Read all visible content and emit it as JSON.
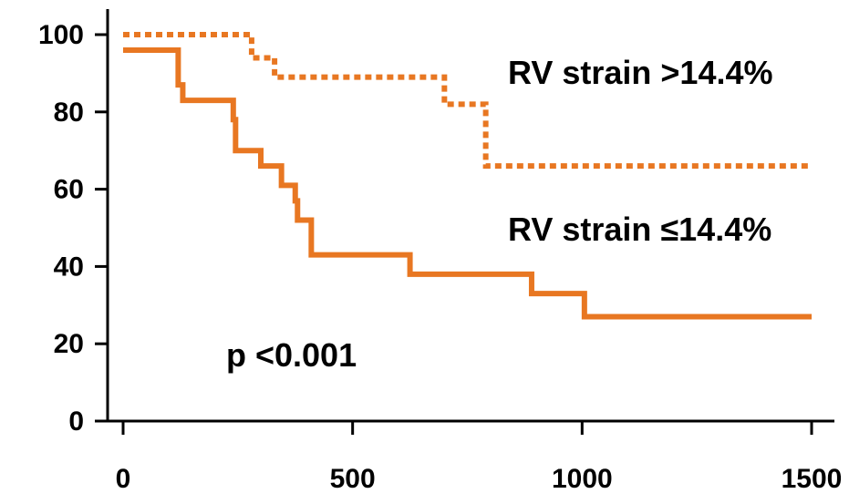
{
  "chart_data": {
    "type": "line",
    "step": true,
    "title": "",
    "xlabel": "",
    "ylabel": "",
    "xlim": [
      0,
      1500
    ],
    "ylim": [
      0,
      100
    ],
    "x_ticks": [
      0,
      500,
      1000,
      1500
    ],
    "y_ticks": [
      0,
      20,
      40,
      60,
      80,
      100
    ],
    "x_tick_labels": [
      "0",
      "500",
      "1000",
      "1500"
    ],
    "y_tick_labels": [
      "0",
      "20",
      "40",
      "60",
      "80",
      "100"
    ],
    "grid": false,
    "colors": {
      "series": "#E87722",
      "axis": "#000000"
    },
    "series": [
      {
        "name": "RV strain >14.4%",
        "style": "dotted",
        "x": [
          0,
          280,
          330,
          700,
          790,
          1500
        ],
        "y": [
          100,
          94,
          89,
          82,
          66,
          66
        ]
      },
      {
        "name": "RV strain ≤14.4%",
        "style": "solid",
        "x": [
          0,
          120,
          130,
          240,
          245,
          300,
          345,
          375,
          380,
          410,
          625,
          890,
          1005,
          1500
        ],
        "y": [
          96,
          87,
          83,
          78,
          70,
          66,
          61,
          57,
          52,
          43,
          38,
          33,
          27,
          27
        ]
      }
    ],
    "annotations": [
      "p <0.001"
    ]
  }
}
